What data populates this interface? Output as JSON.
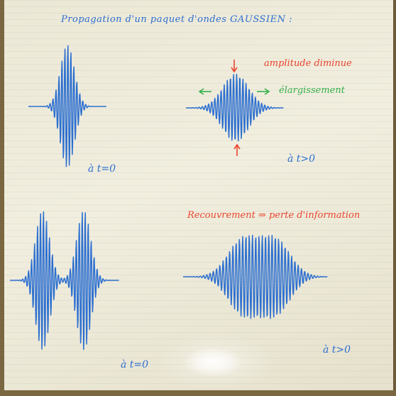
{
  "title": "Propagation d'un paquet d'ondes GAUSSIEN :",
  "labels": {
    "t0_top": "à t=0",
    "tpos_top": "à t>0",
    "t0_bottom": "à t=0",
    "tpos_bottom": "à t>0",
    "amplitude": "amplitude diminue",
    "elargissement": "élargissement",
    "recouvrement": "Recouvrement ⇒ perte d'information"
  },
  "colors": {
    "ink_blue": "#2c6fd0",
    "ink_red": "#e8452e",
    "ink_green": "#34b04a",
    "board": "#efebda"
  }
}
